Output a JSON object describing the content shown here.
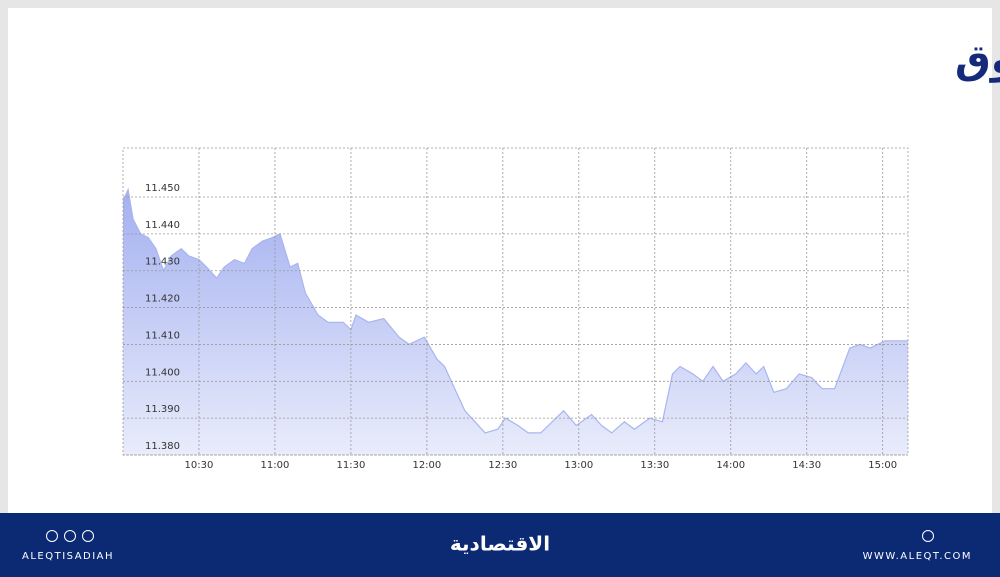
{
  "chart_data": {
    "type": "area",
    "title": "مؤشر السوق",
    "x": [
      600,
      602,
      604,
      607,
      610,
      613,
      616,
      619,
      623,
      626,
      630,
      633,
      637,
      640,
      644,
      648,
      651,
      655,
      659,
      662,
      666,
      669,
      672,
      677,
      681,
      687,
      690,
      692,
      697,
      703,
      709,
      713,
      719,
      724,
      727,
      731,
      735,
      739,
      743,
      748,
      751,
      756,
      760,
      765,
      771,
      774,
      779,
      785,
      789,
      793,
      798,
      802,
      808,
      813,
      817,
      820,
      825,
      829,
      833,
      837,
      842,
      846,
      850,
      853,
      857,
      862,
      867,
      872,
      876,
      881,
      887,
      891,
      895,
      901,
      910
    ],
    "values": [
      11.449,
      11.452,
      11.444,
      11.44,
      11.439,
      11.436,
      11.43,
      11.434,
      11.436,
      11.434,
      11.433,
      11.431,
      11.428,
      11.431,
      11.433,
      11.432,
      11.436,
      11.438,
      11.439,
      11.44,
      11.431,
      11.432,
      11.424,
      11.418,
      11.416,
      11.416,
      11.414,
      11.418,
      11.416,
      11.417,
      11.412,
      11.41,
      11.412,
      11.406,
      11.404,
      11.398,
      11.392,
      11.389,
      11.386,
      11.387,
      11.39,
      11.388,
      11.386,
      11.386,
      11.39,
      11.392,
      11.388,
      11.391,
      11.388,
      11.386,
      11.389,
      11.387,
      11.39,
      11.389,
      11.402,
      11.404,
      11.402,
      11.4,
      11.404,
      11.4,
      11.402,
      11.405,
      11.402,
      11.404,
      11.397,
      11.398,
      11.402,
      11.401,
      11.398,
      11.398,
      11.409,
      11.41,
      11.409,
      11.411,
      11.411
    ],
    "color": "#a9b5f0",
    "xlim": [
      600,
      910
    ],
    "xticks": [
      {
        "value": 630,
        "label": "10:30"
      },
      {
        "value": 660,
        "label": "11:00"
      },
      {
        "value": 690,
        "label": "11:30"
      },
      {
        "value": 720,
        "label": "12:00"
      },
      {
        "value": 750,
        "label": "12:30"
      },
      {
        "value": 780,
        "label": "13:00"
      },
      {
        "value": 810,
        "label": "13:30"
      },
      {
        "value": 840,
        "label": "14:00"
      },
      {
        "value": 870,
        "label": "14:30"
      },
      {
        "value": 900,
        "label": "15:00"
      }
    ],
    "ylim": [
      11.38,
      11.4633
    ],
    "yticks": [
      {
        "value": 11.38,
        "label": "11.380"
      },
      {
        "value": 11.39,
        "label": "11.390"
      },
      {
        "value": 11.4,
        "label": "11.400"
      },
      {
        "value": 11.41,
        "label": "11.410"
      },
      {
        "value": 11.42,
        "label": "11.420"
      },
      {
        "value": 11.43,
        "label": "11.430"
      },
      {
        "value": 11.44,
        "label": "11.440"
      },
      {
        "value": 11.45,
        "label": "11.450"
      }
    ],
    "grid": true
  },
  "footer": {
    "handle": "ALEQTISADIAH",
    "brand": "الاقتصادية",
    "site": "WWW.ALEQT.COM"
  }
}
